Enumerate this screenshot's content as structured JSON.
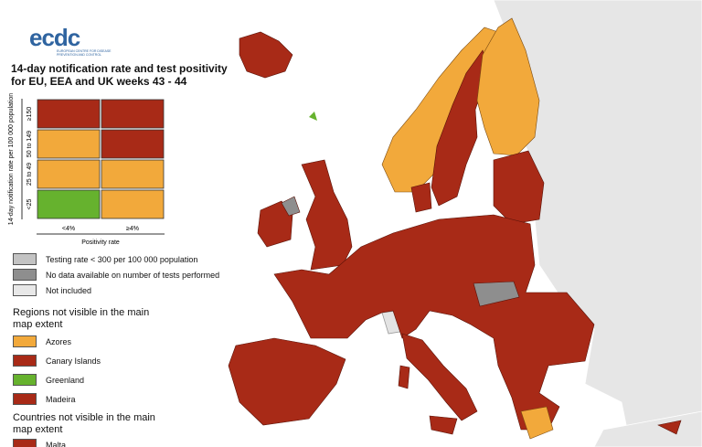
{
  "header": {
    "logo": "ecdc",
    "org": "EUROPEAN CENTRE FOR DISEASE PREVENTION AND CONTROL"
  },
  "title_lines": [
    "14-day notification rate and test positivity",
    "for EU, EEA and UK weeks 43 - 44"
  ],
  "matrix": {
    "y_axis_label": "14-day notification rate per 100 000 population",
    "row_labels": [
      "≥150",
      "50 to 149",
      "25 to 49",
      "<25"
    ],
    "col_labels": [
      "<4%",
      "≥4%"
    ],
    "x_axis_label": "Positivity rate",
    "cells": [
      [
        "#a82a17",
        "#a82a17"
      ],
      [
        "#f2a93b",
        "#a82a17"
      ],
      [
        "#f2a93b",
        "#f2a93b"
      ],
      [
        "#66b22e",
        "#f2a93b"
      ]
    ]
  },
  "legend": [
    {
      "label": "Testing rate < 300 per 100 000 population",
      "color": "#c3c3c3"
    },
    {
      "label": "No data available on number of tests performed",
      "color": "#8e8e8e"
    },
    {
      "label": "Not included",
      "color": "#e8e8e8"
    }
  ],
  "regions": {
    "heading": "Regions not visible in the main map extent",
    "items": [
      {
        "label": "Azores",
        "color": "#f2a93b"
      },
      {
        "label": "Canary Islands",
        "color": "#a82a17"
      },
      {
        "label": "Greenland",
        "color": "#66b22e"
      },
      {
        "label": "Madeira",
        "color": "#a82a17"
      }
    ]
  },
  "countries": {
    "heading": "Countries not visible in the main map extent",
    "items": [
      {
        "label": "Malta",
        "color": "#a82a17"
      }
    ]
  }
}
